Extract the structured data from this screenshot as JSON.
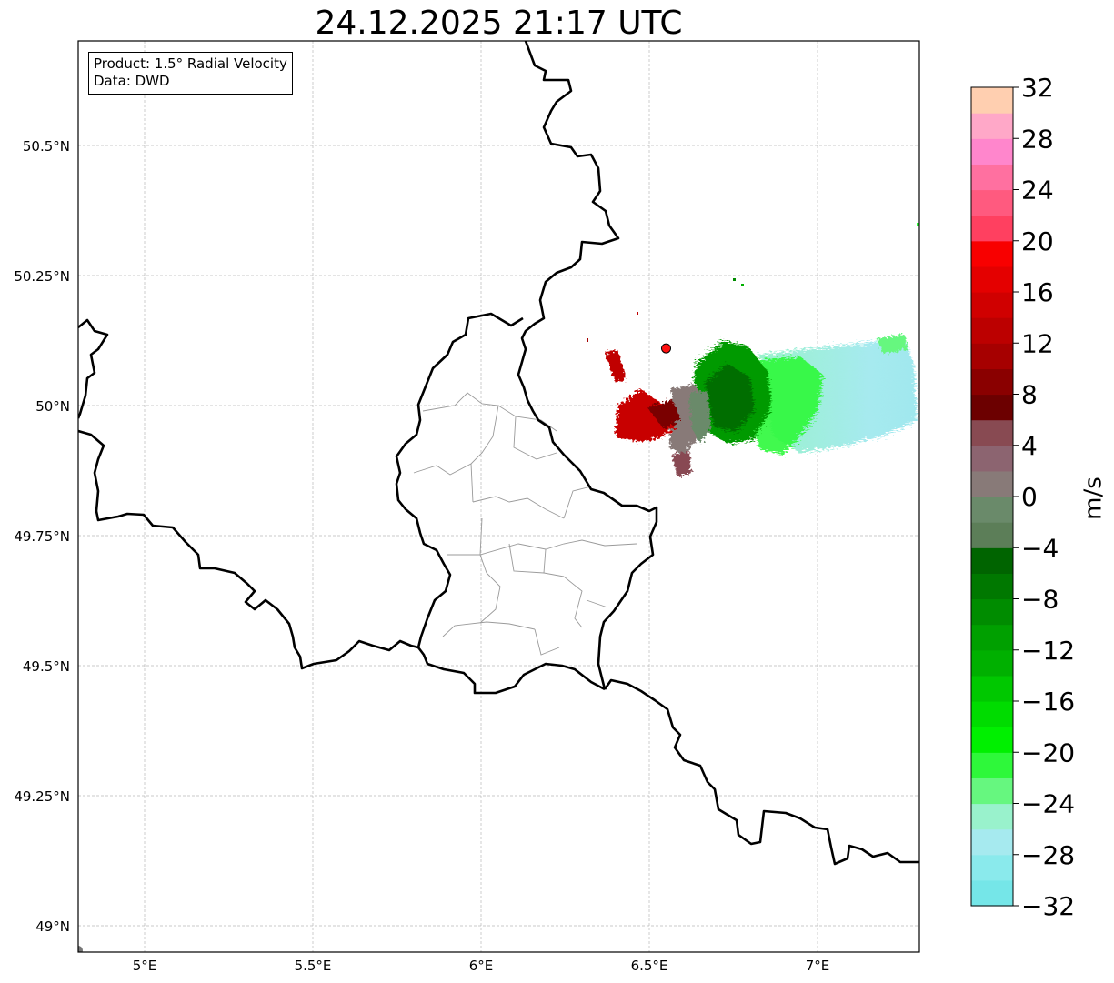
{
  "title": "24.12.2025 21:17 UTC",
  "info": {
    "product": "Product: 1.5° Radial Velocity",
    "data_source": "Data: DWD"
  },
  "map": {
    "lon_range": [
      4.8,
      7.3
    ],
    "lat_range": [
      48.95,
      50.7
    ],
    "grid": true,
    "lon_ticks": [
      {
        "value": 5.0,
        "label": "5°E"
      },
      {
        "value": 5.5,
        "label": "5.5°E"
      },
      {
        "value": 6.0,
        "label": "6°E"
      },
      {
        "value": 6.5,
        "label": "6.5°E"
      },
      {
        "value": 7.0,
        "label": "7°E"
      }
    ],
    "lat_ticks": [
      {
        "value": 50.5,
        "label": "50.5°N"
      },
      {
        "value": 50.25,
        "label": "50.25°N"
      },
      {
        "value": 50.0,
        "label": "50°N"
      },
      {
        "value": 49.75,
        "label": "49.75°N"
      },
      {
        "value": 49.5,
        "label": "49.5°N"
      },
      {
        "value": 49.25,
        "label": "49.25°N"
      },
      {
        "value": 49.0,
        "label": "49°N"
      }
    ],
    "radar_site": {
      "lon": 6.55,
      "lat": 50.11,
      "color": "#ff1010"
    }
  },
  "colorbar": {
    "label": "m/s",
    "min": -32,
    "max": 32,
    "step": 2,
    "tick_labels": [
      "32",
      "28",
      "24",
      "20",
      "16",
      "12",
      "8",
      "4",
      "0",
      "−4",
      "−8",
      "−12",
      "−16",
      "−20",
      "−24",
      "−28",
      "−32"
    ],
    "colors_bottom_to_top": [
      "#75e6e8",
      "#8aeaec",
      "#a6eaef",
      "#99f2cc",
      "#66f77f",
      "#2ef83a",
      "#00f000",
      "#00dc00",
      "#00c800",
      "#00b000",
      "#00a000",
      "#008c00",
      "#007800",
      "#006400",
      "#5c7e58",
      "#6a8a6a",
      "#887a78",
      "#8c6470",
      "#884a52",
      "#6c0000",
      "#8a0000",
      "#a60000",
      "#bc0000",
      "#d00000",
      "#e40000",
      "#f80000",
      "#ff4060",
      "#ff5a7f",
      "#ff70a0",
      "#ff86cc",
      "#ffa8c8",
      "#ffcfb0"
    ]
  }
}
